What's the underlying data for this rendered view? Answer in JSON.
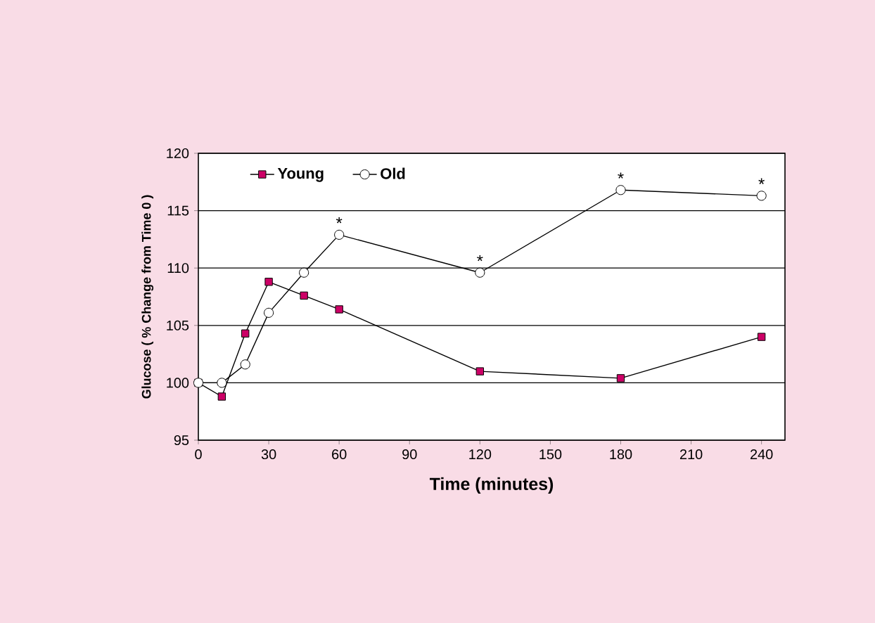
{
  "chart_data": {
    "type": "line",
    "xlabel": "Time (minutes)",
    "ylabel": "Glucose ( % Change from Time 0 )",
    "x": [
      0,
      10,
      20,
      30,
      45,
      60,
      120,
      180,
      240
    ],
    "series": [
      {
        "name": "Young",
        "color": "#cc0066",
        "marker": "square",
        "values": [
          100,
          98.8,
          104.3,
          108.8,
          107.6,
          106.4,
          101.0,
          100.4,
          104.0
        ]
      },
      {
        "name": "Old",
        "color": "#ffffff",
        "marker": "circle",
        "values": [
          100,
          100,
          101.6,
          106.1,
          109.6,
          112.9,
          109.6,
          116.8,
          116.3
        ]
      }
    ],
    "xlim": [
      0,
      250
    ],
    "xticks": [
      0,
      30,
      60,
      90,
      120,
      150,
      180,
      210,
      240
    ],
    "ylim": [
      95,
      120
    ],
    "yticks": [
      95,
      100,
      105,
      110,
      115,
      120
    ],
    "grid": "y",
    "legend": "top left",
    "line_style": "solid",
    "annotations": [
      {
        "text": "*",
        "x": 60,
        "y": 112.9
      },
      {
        "text": "*",
        "x": 120,
        "y": 109.6
      },
      {
        "text": "*",
        "x": 180,
        "y": 116.8
      },
      {
        "text": "*",
        "x": 240,
        "y": 116.3
      }
    ]
  }
}
